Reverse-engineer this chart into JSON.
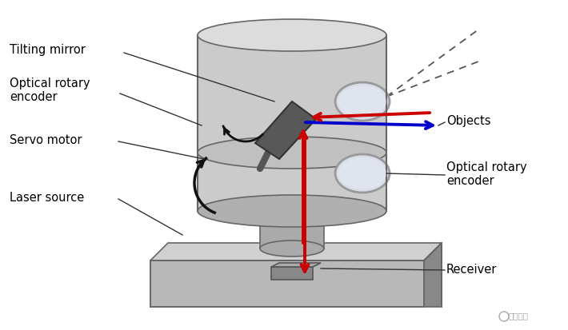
{
  "title": "",
  "background_color": "#ffffff",
  "labels": {
    "tilting_mirror": "Tilting mirror",
    "optical_rotary_encoder_left": "Optical rotary\nencoder",
    "servo_motor": "Servo motor",
    "laser_source": "Laser source",
    "objects": "Objects",
    "optical_rotary_encoder_right": "Optical rotary\nencoder",
    "receiver": "Receiver"
  },
  "colors": {
    "cylinder_face": "#b8b8b8",
    "cylinder_top": "#d0d0d0",
    "cylinder_dark": "#909090",
    "glass_fill": "#d0d8e0",
    "mirror": "#585858",
    "base_fill": "#b8b8b8",
    "base_top": "#d0d0d0",
    "base_dark": "#888888",
    "arrow_red": "#cc0000",
    "arrow_blue": "#0000cc",
    "dashed_line": "#555555",
    "text_color": "#000000",
    "lens_fill": "#d8dde8",
    "lens_edge": "#999999",
    "edge_color": "#666666",
    "watermark": "#888888"
  },
  "watermark": "九章智驾"
}
